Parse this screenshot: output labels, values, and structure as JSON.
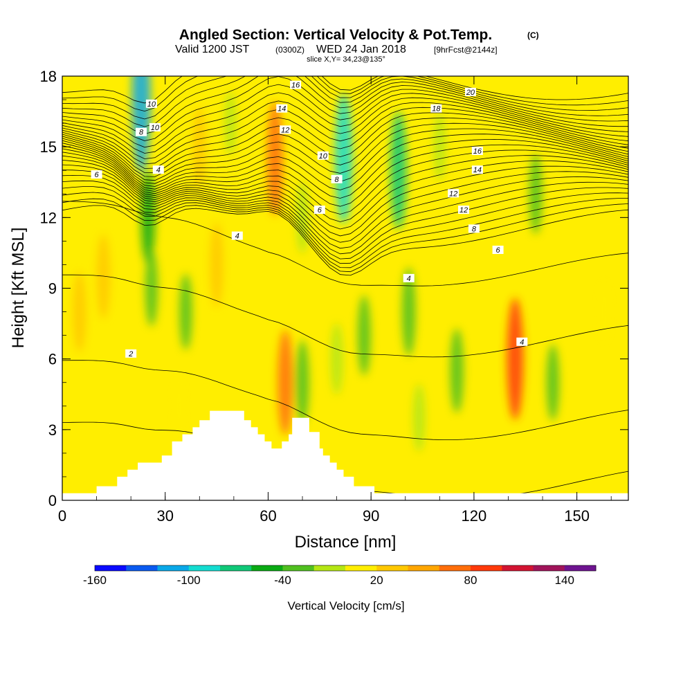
{
  "title": {
    "main": "Angled Section: Vertical Velocity & Pot.Temp.",
    "tag": "(C)",
    "valid_prefix": "Valid 1200 JST",
    "valid_utc": "(0300Z)",
    "valid_date": "WED 24 Jan 2018",
    "fcst": "[9hrFcst@2144z]",
    "slice": "slice X,Y= 34,23@135°"
  },
  "chart_data": {
    "type": "heatmap",
    "xlabel": "Distance [nm]",
    "ylabel": "Height [Kft MSL]",
    "xlim": [
      0,
      165
    ],
    "ylim": [
      0,
      18
    ],
    "xticks": [
      0,
      30,
      60,
      90,
      120,
      150
    ],
    "yticks": [
      0,
      3,
      6,
      9,
      12,
      15,
      18
    ],
    "colorbar": {
      "label": "Vertical Velocity [cm/s]",
      "ticks": [
        -160,
        -100,
        -40,
        20,
        80,
        140
      ],
      "levels": [
        -160,
        -140,
        -120,
        -100,
        -80,
        -60,
        -40,
        -20,
        0,
        20,
        40,
        60,
        80,
        100,
        120,
        140,
        160
      ],
      "colors": [
        "#0a0aff",
        "#0a5af0",
        "#0aa8e8",
        "#14dcd0",
        "#10c878",
        "#0aaa14",
        "#50c020",
        "#b4e614",
        "#ffee00",
        "#ffc800",
        "#ffa600",
        "#ff6e0a",
        "#ff3a0a",
        "#d21432",
        "#a0145a",
        "#6e1490"
      ]
    },
    "background": "#ffee00",
    "velocity_features": [
      {
        "x": 5,
        "y": 8,
        "value": 30
      },
      {
        "x": 12,
        "y": 9.5,
        "value": 35
      },
      {
        "x": 23,
        "y": 17,
        "value": -110
      },
      {
        "x": 25,
        "y": 12,
        "value": -45
      },
      {
        "x": 26,
        "y": 9,
        "value": -25
      },
      {
        "x": 36,
        "y": 8,
        "value": -25
      },
      {
        "x": 34,
        "y": 4,
        "value": 5
      },
      {
        "x": 40,
        "y": 15,
        "value": 30
      },
      {
        "x": 45,
        "y": 10,
        "value": 35
      },
      {
        "x": 49,
        "y": 16,
        "value": -10
      },
      {
        "x": 62,
        "y": 14.5,
        "value": 70
      },
      {
        "x": 65,
        "y": 5,
        "value": 60
      },
      {
        "x": 70,
        "y": 12,
        "value": -20
      },
      {
        "x": 70,
        "y": 5,
        "value": -35
      },
      {
        "x": 82,
        "y": 14.5,
        "value": -90
      },
      {
        "x": 80,
        "y": 6,
        "value": -20
      },
      {
        "x": 88,
        "y": 7,
        "value": -30
      },
      {
        "x": 98,
        "y": 14,
        "value": -75
      },
      {
        "x": 101,
        "y": 8,
        "value": -40
      },
      {
        "x": 110,
        "y": 15,
        "value": -15
      },
      {
        "x": 104,
        "y": 3.5,
        "value": -15
      },
      {
        "x": 115,
        "y": 5.5,
        "value": -35
      },
      {
        "x": 132,
        "y": 6,
        "value": 80
      },
      {
        "x": 138,
        "y": 13,
        "value": -30
      },
      {
        "x": 143,
        "y": 5,
        "value": -25
      },
      {
        "x": 158,
        "y": 8,
        "value": 10
      }
    ],
    "theta_labels": [
      "2",
      "4",
      "4",
      "4",
      "4",
      "6",
      "6",
      "6",
      "8",
      "8",
      "8",
      "10",
      "10",
      "10",
      "12",
      "12",
      "12",
      "14",
      "14",
      "16",
      "16",
      "18",
      "20"
    ],
    "terrain": [
      [
        0,
        0.3
      ],
      [
        10,
        0.3
      ],
      [
        10,
        0.6
      ],
      [
        16,
        0.6
      ],
      [
        16,
        1
      ],
      [
        19,
        1
      ],
      [
        19,
        1.3
      ],
      [
        22,
        1.3
      ],
      [
        22,
        1.6
      ],
      [
        29,
        1.6
      ],
      [
        29,
        1.9
      ],
      [
        32,
        1.9
      ],
      [
        32,
        2.5
      ],
      [
        35,
        2.5
      ],
      [
        35,
        2.8
      ],
      [
        38,
        2.8
      ],
      [
        38,
        3.1
      ],
      [
        40,
        3.1
      ],
      [
        40,
        3.4
      ],
      [
        43,
        3.4
      ],
      [
        43,
        3.8
      ],
      [
        53,
        3.8
      ],
      [
        53,
        3.4
      ],
      [
        55,
        3.4
      ],
      [
        55,
        3.1
      ],
      [
        57,
        3.1
      ],
      [
        57,
        2.8
      ],
      [
        59,
        2.8
      ],
      [
        59,
        2.5
      ],
      [
        61,
        2.5
      ],
      [
        61,
        2.2
      ],
      [
        64,
        2.2
      ],
      [
        64,
        2.5
      ],
      [
        66,
        2.5
      ],
      [
        66,
        2.8
      ],
      [
        67,
        2.8
      ],
      [
        67,
        3.5
      ],
      [
        72,
        3.5
      ],
      [
        72,
        2.9
      ],
      [
        75,
        2.9
      ],
      [
        75,
        2.2
      ],
      [
        76,
        2.2
      ],
      [
        76,
        1.9
      ],
      [
        78,
        1.9
      ],
      [
        78,
        1.6
      ],
      [
        80,
        1.6
      ],
      [
        80,
        1.3
      ],
      [
        82,
        1.3
      ],
      [
        82,
        1
      ],
      [
        85,
        1
      ],
      [
        85,
        0.6
      ],
      [
        91,
        0.6
      ],
      [
        91,
        0.3
      ],
      [
        165,
        0.3
      ]
    ]
  }
}
